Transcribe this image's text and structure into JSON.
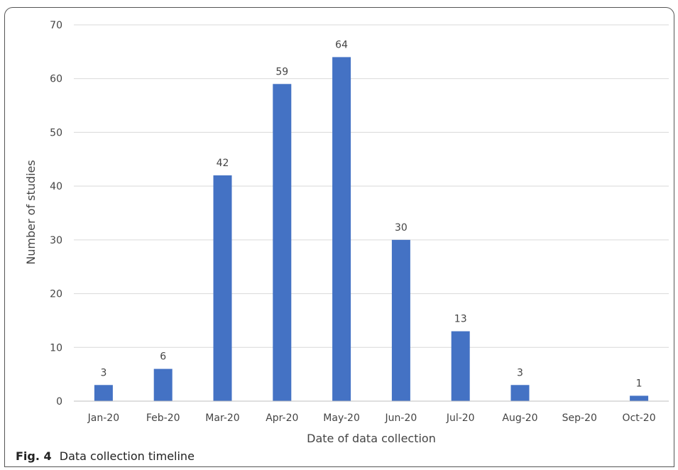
{
  "figure": {
    "label": "Fig. 4",
    "caption": "Data collection timeline"
  },
  "chart_data": {
    "type": "bar",
    "categories": [
      "Jan-20",
      "Feb-20",
      "Mar-20",
      "Apr-20",
      "May-20",
      "Jun-20",
      "Jul-20",
      "Aug-20",
      "Sep-20",
      "Oct-20"
    ],
    "values": [
      3,
      6,
      42,
      59,
      64,
      30,
      13,
      3,
      null,
      1
    ],
    "data_labels": [
      "3",
      "6",
      "42",
      "59",
      "64",
      "30",
      "13",
      "3",
      "",
      "1"
    ],
    "xlabel": "Date of data collection",
    "ylabel": "Number of studies",
    "ylim": [
      0,
      70
    ],
    "yticks": [
      0,
      10,
      20,
      30,
      40,
      50,
      60,
      70
    ],
    "grid": true,
    "bar_color": "#4472c4"
  }
}
